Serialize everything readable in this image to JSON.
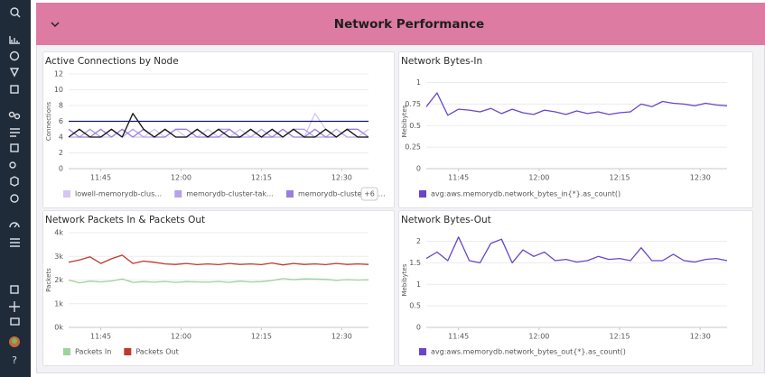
{
  "header": {
    "title": "Network Performance"
  },
  "sidebar": {
    "help": "?"
  },
  "chart_data": [
    {
      "type": "line",
      "title": "Active Connections by Node",
      "y_label": "Connections",
      "x": [
        699,
        701,
        703,
        705,
        707,
        709,
        711,
        713,
        715,
        717,
        719,
        721,
        723,
        725,
        727,
        729,
        731,
        733,
        735,
        737,
        739,
        741,
        743,
        745,
        747,
        749,
        751,
        753,
        755
      ],
      "xlim": [
        699,
        755
      ],
      "xticks": [
        {
          "value": 705,
          "label": "11:45"
        },
        {
          "value": 720,
          "label": "12:00"
        },
        {
          "value": 735,
          "label": "12:15"
        },
        {
          "value": 750,
          "label": "12:30"
        }
      ],
      "ylim": [
        0,
        12
      ],
      "yticks": [
        0,
        2,
        4,
        6,
        8,
        10,
        12
      ],
      "grid": true,
      "legend_more": "+6",
      "series": [
        {
          "name": "lowell-memorydb-clus…",
          "color": "#d3c6f1",
          "values": [
            5,
            4,
            5,
            4,
            4,
            5,
            4,
            4,
            5,
            4,
            5,
            4,
            4,
            5,
            4,
            4,
            5,
            4,
            4,
            5,
            4,
            5,
            4,
            7,
            5,
            4,
            5,
            4,
            5
          ]
        },
        {
          "name": "memorydb-cluster-tak…",
          "color": "#b6a2e8",
          "values": [
            4,
            4,
            5,
            4,
            5,
            4,
            5,
            4,
            4,
            5,
            4,
            4,
            5,
            4,
            5,
            5,
            4,
            4,
            5,
            4,
            4,
            5,
            5,
            4,
            4,
            5,
            4,
            4,
            4
          ]
        },
        {
          "name": "memorydb-cluster-tak…",
          "color": "#9a7ddd",
          "values": [
            5,
            4,
            4,
            5,
            4,
            5,
            4,
            5,
            4,
            4,
            5,
            5,
            4,
            4,
            4,
            5,
            4,
            5,
            4,
            4,
            5,
            4,
            4,
            5,
            4,
            4,
            5,
            5,
            4
          ]
        },
        {
          "color": "#111111",
          "values": [
            4,
            5,
            4,
            4,
            5,
            4,
            7,
            5,
            4,
            5,
            4,
            4,
            5,
            4,
            5,
            4,
            4,
            5,
            4,
            5,
            4,
            5,
            4,
            4,
            5,
            4,
            5,
            4,
            4
          ]
        },
        {
          "color": "#16166b",
          "values": [
            6,
            6,
            6,
            6,
            6,
            6,
            6,
            6,
            6,
            6,
            6,
            6,
            6,
            6,
            6,
            6,
            6,
            6,
            6,
            6,
            6,
            6,
            6,
            6,
            6,
            6,
            6,
            6,
            6
          ]
        }
      ]
    },
    {
      "type": "line",
      "title": "Network Bytes-In",
      "y_label": "Mebibytes",
      "x": [
        699,
        701,
        703,
        705,
        707,
        709,
        711,
        713,
        715,
        717,
        719,
        721,
        723,
        725,
        727,
        729,
        731,
        733,
        735,
        737,
        739,
        741,
        743,
        745,
        747,
        749,
        751,
        753,
        755
      ],
      "xlim": [
        699,
        755
      ],
      "xticks": [
        {
          "value": 705,
          "label": "11:45"
        },
        {
          "value": 720,
          "label": "12:00"
        },
        {
          "value": 735,
          "label": "12:15"
        },
        {
          "value": 750,
          "label": "12:30"
        }
      ],
      "ylim": [
        0,
        1.1
      ],
      "yticks": [
        0,
        0.25,
        0.5,
        0.75,
        1
      ],
      "grid": true,
      "series": [
        {
          "name": "avg:aws.memorydb.network_bytes_in{*}.as_count()",
          "color": "#6a45c9",
          "values": [
            0.72,
            0.88,
            0.62,
            0.69,
            0.68,
            0.66,
            0.7,
            0.64,
            0.69,
            0.65,
            0.63,
            0.68,
            0.66,
            0.63,
            0.67,
            0.64,
            0.66,
            0.63,
            0.65,
            0.66,
            0.75,
            0.72,
            0.78,
            0.76,
            0.75,
            0.73,
            0.76,
            0.74,
            0.73
          ]
        }
      ]
    },
    {
      "type": "line",
      "title": "Network Packets In & Packets Out",
      "y_label": "Packets",
      "x": [
        699,
        701,
        703,
        705,
        707,
        709,
        711,
        713,
        715,
        717,
        719,
        721,
        723,
        725,
        727,
        729,
        731,
        733,
        735,
        737,
        739,
        741,
        743,
        745,
        747,
        749,
        751,
        753,
        755
      ],
      "xlim": [
        699,
        755
      ],
      "xticks": [
        {
          "value": 705,
          "label": "11:45"
        },
        {
          "value": 720,
          "label": "12:00"
        },
        {
          "value": 735,
          "label": "12:15"
        },
        {
          "value": 750,
          "label": "12:30"
        }
      ],
      "ylim": [
        0,
        4000
      ],
      "yticks": [
        {
          "value": 0,
          "label": "0k"
        },
        {
          "value": 1000,
          "label": "1k"
        },
        {
          "value": 2000,
          "label": "2k"
        },
        {
          "value": 3000,
          "label": "3k"
        },
        {
          "value": 4000,
          "label": "4k"
        }
      ],
      "grid": true,
      "series": [
        {
          "name": "Packets In",
          "color": "#9fd39a",
          "values": [
            2000,
            1880,
            1950,
            1920,
            1960,
            2050,
            1900,
            1930,
            1910,
            1940,
            1900,
            1930,
            1920,
            1910,
            1940,
            1900,
            1950,
            1920,
            1930,
            1980,
            2060,
            2020,
            2050,
            2040,
            2030,
            1990,
            2020,
            2000,
            2010
          ]
        },
        {
          "name": "Packets Out",
          "color": "#c0392b",
          "values": [
            2750,
            2850,
            2980,
            2700,
            2900,
            3050,
            2700,
            2800,
            2750,
            2680,
            2660,
            2700,
            2650,
            2680,
            2650,
            2700,
            2660,
            2680,
            2650,
            2720,
            2640,
            2700,
            2660,
            2680,
            2650,
            2700,
            2660,
            2680,
            2660
          ]
        }
      ]
    },
    {
      "type": "line",
      "title": "Network Bytes-Out",
      "y_label": "Mebibytes",
      "x": [
        699,
        701,
        703,
        705,
        707,
        709,
        711,
        713,
        715,
        717,
        719,
        721,
        723,
        725,
        727,
        729,
        731,
        733,
        735,
        737,
        739,
        741,
        743,
        745,
        747,
        749,
        751,
        753,
        755
      ],
      "xlim": [
        699,
        755
      ],
      "xticks": [
        {
          "value": 705,
          "label": "11:45"
        },
        {
          "value": 720,
          "label": "12:00"
        },
        {
          "value": 735,
          "label": "12:15"
        },
        {
          "value": 750,
          "label": "12:30"
        }
      ],
      "ylim": [
        0,
        2.2
      ],
      "yticks": [
        0,
        0.5,
        1,
        1.5,
        2
      ],
      "grid": true,
      "series": [
        {
          "name": "avg:aws.memorydb.network_bytes_out{*}.as_count()",
          "color": "#6a45c9",
          "values": [
            1.6,
            1.75,
            1.55,
            2.1,
            1.55,
            1.5,
            1.95,
            2.05,
            1.5,
            1.8,
            1.65,
            1.75,
            1.55,
            1.58,
            1.52,
            1.55,
            1.65,
            1.58,
            1.6,
            1.55,
            1.85,
            1.55,
            1.55,
            1.7,
            1.55,
            1.52,
            1.58,
            1.6,
            1.55
          ]
        }
      ]
    }
  ]
}
